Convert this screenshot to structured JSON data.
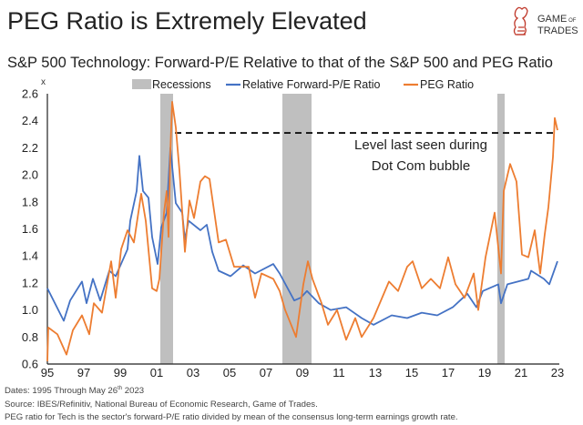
{
  "header": {
    "title": "PEG Ratio is Extremely Elevated",
    "logo_text": [
      "GAME OF",
      "TRADES"
    ],
    "logo_color": "#c0392b"
  },
  "chart_data": {
    "type": "line",
    "title": "S&P 500 Technology: Forward-P/E Relative to that of the S&P 500 and PEG Ratio",
    "ylabel": "x",
    "xlabel": "",
    "ylim": [
      0.6,
      2.6
    ],
    "yticks": [
      "2.6",
      "2.4",
      "2.2",
      "2.0",
      "1.8",
      "1.6",
      "1.4",
      "1.2",
      "1.0",
      "0.8",
      "0.6"
    ],
    "xlim": [
      1995,
      2023
    ],
    "xticks": [
      {
        "year": 1995,
        "label": "95"
      },
      {
        "year": 1997,
        "label": "97"
      },
      {
        "year": 1999,
        "label": "99"
      },
      {
        "year": 2001,
        "label": "01"
      },
      {
        "year": 2003,
        "label": "03"
      },
      {
        "year": 2005,
        "label": "05"
      },
      {
        "year": 2007,
        "label": "07"
      },
      {
        "year": 2009,
        "label": "09"
      },
      {
        "year": 2011,
        "label": "11"
      },
      {
        "year": 2013,
        "label": "13"
      },
      {
        "year": 2015,
        "label": "15"
      },
      {
        "year": 2017,
        "label": "17"
      },
      {
        "year": 2019,
        "label": "19"
      },
      {
        "year": 2021,
        "label": "21"
      },
      {
        "year": 2023,
        "label": "23"
      }
    ],
    "grid": false,
    "legend_position": "top",
    "legend": {
      "recessions": "Recessions"
    },
    "recessions": [
      [
        2001.2,
        2001.9
      ],
      [
        2007.9,
        2009.5
      ],
      [
        2019.7,
        2020.1
      ]
    ],
    "recession_color": "#bfbfbf",
    "series": [
      {
        "name": "Relative Forward-P/E Ratio",
        "color": "#4472c4",
        "x": [
          1995.0,
          1995.9,
          1996.25,
          1996.9,
          1997.15,
          1997.5,
          1997.9,
          1998.4,
          1998.75,
          1999.4,
          1999.55,
          1999.9,
          2000.05,
          2000.25,
          2000.55,
          2000.75,
          2001.05,
          2001.25,
          2001.55,
          2001.75,
          2002.05,
          2002.4,
          2002.55,
          2002.75,
          2003.4,
          2003.75,
          2004.05,
          2004.4,
          2005.05,
          2005.75,
          2006.4,
          2007.4,
          2007.75,
          2008.55,
          2008.9,
          2009.25,
          2009.9,
          2010.55,
          2011.4,
          2012.25,
          2012.9,
          2013.9,
          2014.75,
          2015.55,
          2016.4,
          2017.25,
          2018.05,
          2018.55,
          2018.9,
          2019.75,
          2019.9,
          2020.25,
          2021.4,
          2021.55,
          2022.25,
          2022.55,
          2023.0
        ],
        "y": [
          1.16,
          0.92,
          1.07,
          1.21,
          1.05,
          1.23,
          1.07,
          1.29,
          1.25,
          1.45,
          1.66,
          1.88,
          2.14,
          1.88,
          1.83,
          1.54,
          1.34,
          1.61,
          1.72,
          2.2,
          1.79,
          1.72,
          1.52,
          1.66,
          1.59,
          1.63,
          1.43,
          1.29,
          1.25,
          1.33,
          1.27,
          1.34,
          1.27,
          1.07,
          1.09,
          1.14,
          1.05,
          1.0,
          1.02,
          0.94,
          0.89,
          0.96,
          0.94,
          0.98,
          0.96,
          1.02,
          1.12,
          1.02,
          1.14,
          1.19,
          1.05,
          1.19,
          1.23,
          1.29,
          1.23,
          1.19,
          1.36
        ]
      },
      {
        "name": "PEG Ratio",
        "color": "#ed7d31",
        "x": [
          1995.0,
          1995.05,
          1995.55,
          1996.05,
          1996.4,
          1996.9,
          1997.3,
          1997.55,
          1998.0,
          1998.5,
          1998.75,
          1999.05,
          1999.4,
          1999.75,
          2000.15,
          2000.4,
          2000.75,
          2001.0,
          2001.15,
          2001.4,
          2001.55,
          2001.65,
          2001.75,
          2001.85,
          2002.05,
          2002.25,
          2002.55,
          2002.8,
          2003.05,
          2003.4,
          2003.65,
          2003.9,
          2004.4,
          2004.8,
          2005.25,
          2006.05,
          2006.4,
          2006.75,
          2007.4,
          2007.75,
          2008.05,
          2008.65,
          2009.05,
          2009.3,
          2009.55,
          2010.05,
          2010.4,
          2010.9,
          2011.4,
          2011.9,
          2012.25,
          2012.9,
          2013.75,
          2014.25,
          2014.75,
          2015.05,
          2015.55,
          2016.05,
          2016.55,
          2017.0,
          2017.4,
          2017.9,
          2018.4,
          2018.65,
          2019.05,
          2019.55,
          2019.9,
          2020.05,
          2020.4,
          2020.75,
          2021.05,
          2021.4,
          2021.75,
          2022.05,
          2022.3,
          2022.5,
          2022.75,
          2022.85,
          2023.0
        ],
        "y": [
          0.62,
          0.87,
          0.82,
          0.67,
          0.85,
          0.96,
          0.82,
          1.05,
          0.98,
          1.36,
          1.09,
          1.45,
          1.59,
          1.5,
          1.86,
          1.66,
          1.16,
          1.14,
          1.23,
          1.72,
          1.88,
          1.54,
          2.17,
          2.54,
          2.35,
          2.03,
          1.43,
          1.81,
          1.68,
          1.95,
          1.99,
          1.97,
          1.5,
          1.52,
          1.32,
          1.32,
          1.09,
          1.27,
          1.23,
          1.14,
          1.0,
          0.8,
          1.19,
          1.36,
          1.23,
          1.05,
          0.89,
          1.0,
          0.78,
          0.94,
          0.8,
          0.94,
          1.21,
          1.14,
          1.32,
          1.36,
          1.16,
          1.23,
          1.16,
          1.39,
          1.19,
          1.09,
          1.27,
          1.0,
          1.39,
          1.72,
          1.27,
          1.88,
          2.08,
          1.95,
          1.41,
          1.39,
          1.59,
          1.27,
          1.56,
          1.76,
          2.13,
          2.42,
          2.33
        ]
      }
    ],
    "reference_line": {
      "y": 2.31,
      "from": 2002.0,
      "to": 2023.0,
      "style": "dashed"
    },
    "annotation": [
      "Level last seen during",
      "Dot Com bubble"
    ]
  },
  "footer": {
    "dates_prefix": "Dates: 1995 Through May 26",
    "dates_sup": "th",
    "dates_suffix": " 2023",
    "source": "Source: IBES/Refinitiv, National Bureau of Economic Research, Game of Trades.",
    "note": "PEG ratio for Tech is the sector's forward-P/E ratio divided by mean of the consensus long-term earnings growth rate."
  }
}
